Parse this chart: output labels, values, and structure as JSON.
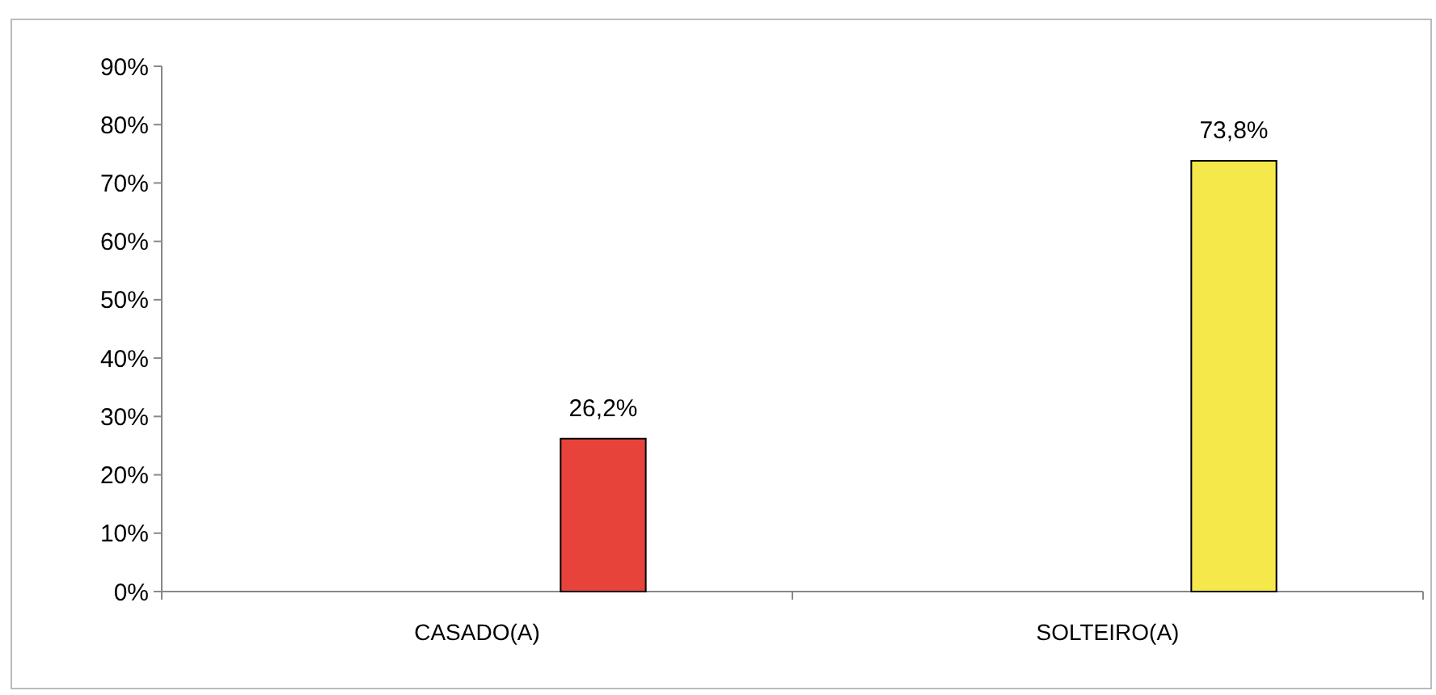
{
  "chart_data": {
    "type": "bar",
    "categories": [
      "CASADO(A)",
      "SOLTEIRO(A)"
    ],
    "values": [
      26.2,
      73.8
    ],
    "colors": [
      "#e8433a",
      "#f4e84a"
    ],
    "value_labels": [
      "26,2%",
      "73,8%"
    ],
    "ylim": [
      0,
      90
    ],
    "yticks": [
      {
        "value": 0,
        "label": "0%"
      },
      {
        "value": 10,
        "label": "10%"
      },
      {
        "value": 20,
        "label": "20%"
      },
      {
        "value": 30,
        "label": "30%"
      },
      {
        "value": 40,
        "label": "40%"
      },
      {
        "value": 50,
        "label": "50%"
      },
      {
        "value": 60,
        "label": "60%"
      },
      {
        "value": 70,
        "label": "70%"
      },
      {
        "value": 80,
        "label": "80%"
      },
      {
        "value": 90,
        "label": "90%"
      }
    ],
    "grid": false
  }
}
